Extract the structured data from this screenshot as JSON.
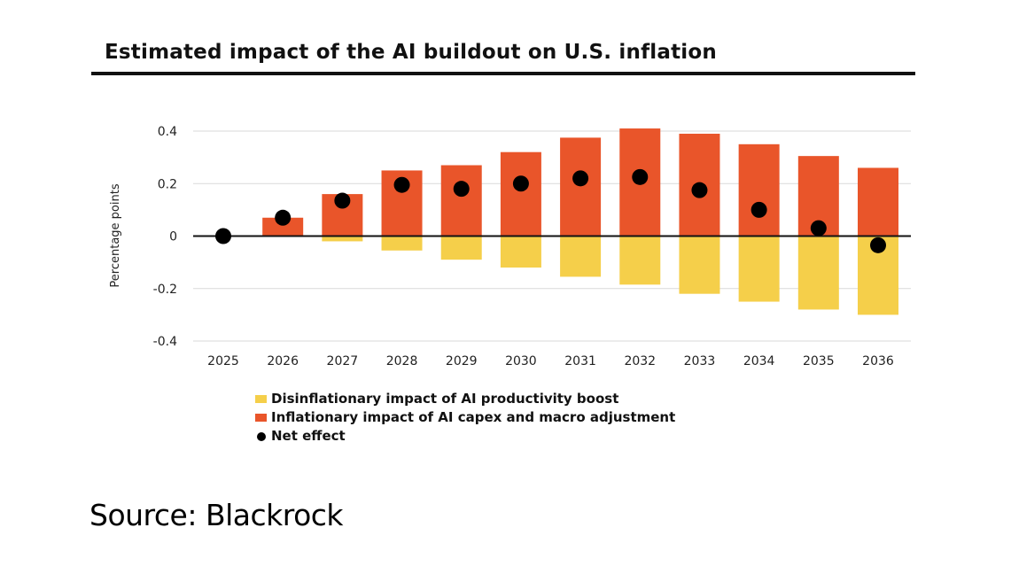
{
  "chart_data": {
    "type": "bar",
    "title": "Estimated impact of the AI buildout on U.S. inflation",
    "ylabel": "Percentage points",
    "xlabel": "",
    "ylim": [
      -0.4,
      0.4
    ],
    "yticks": [
      0.4,
      0.2,
      0,
      -0.2,
      -0.4
    ],
    "ytick_labels": [
      "0.4",
      "0.2",
      "0",
      "-0.2",
      "-0.4"
    ],
    "categories": [
      "2025",
      "2026",
      "2027",
      "2028",
      "2029",
      "2030",
      "2031",
      "2032",
      "2033",
      "2034",
      "2035",
      "2036"
    ],
    "stacked": true,
    "grid": "horizontal",
    "legend_position": "bottom",
    "series": [
      {
        "name": "Disinflationary impact of AI productivity boost",
        "kind": "bar",
        "color": "#f5cf4a",
        "values": [
          0,
          0,
          -0.02,
          -0.055,
          -0.09,
          -0.12,
          -0.155,
          -0.185,
          -0.22,
          -0.25,
          -0.28,
          -0.3
        ]
      },
      {
        "name": "Inflationary impact of AI capex and macro adjustment",
        "kind": "bar",
        "color": "#e9552a",
        "values": [
          0,
          0.07,
          0.16,
          0.25,
          0.27,
          0.32,
          0.375,
          0.41,
          0.39,
          0.35,
          0.305,
          0.26
        ]
      },
      {
        "name": "Net effect",
        "kind": "dot",
        "color": "#000000",
        "values": [
          0,
          0.07,
          0.135,
          0.195,
          0.18,
          0.2,
          0.22,
          0.225,
          0.175,
          0.1,
          0.03,
          -0.035
        ]
      }
    ]
  },
  "source": "Source: Blackrock"
}
